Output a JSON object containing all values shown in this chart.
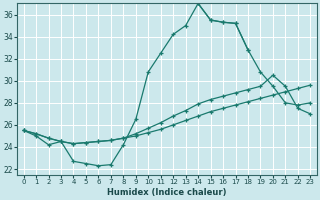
{
  "xlabel": "Humidex (Indice chaleur)",
  "background_color": "#cce8ec",
  "grid_color": "#ffffff",
  "line_color": "#1a7a6e",
  "xlim": [
    -0.5,
    23.5
  ],
  "ylim": [
    21.5,
    37.0
  ],
  "xticks": [
    0,
    1,
    2,
    3,
    4,
    5,
    6,
    7,
    8,
    9,
    10,
    11,
    12,
    13,
    14,
    15,
    16,
    17,
    18,
    19,
    20,
    21,
    22,
    23
  ],
  "yticks": [
    22,
    24,
    26,
    28,
    30,
    32,
    34,
    36
  ],
  "ytick_labels": [
    "22",
    "24",
    "26",
    "28",
    "30",
    "32",
    "34",
    "36"
  ],
  "line1_x": [
    0,
    1,
    2,
    3,
    4,
    5,
    6,
    7,
    8,
    9,
    10,
    11,
    12,
    13,
    14,
    15,
    16,
    17,
    18
  ],
  "line1_y": [
    25.5,
    25.0,
    24.2,
    24.5,
    22.7,
    22.5,
    22.3,
    22.4,
    24.2,
    26.5,
    30.8,
    32.5,
    34.2,
    35.0,
    37.0,
    35.5,
    35.3,
    35.2,
    32.8
  ],
  "line2_x": [
    14,
    15,
    16,
    17,
    18,
    19,
    20,
    21,
    22,
    23
  ],
  "line2_y": [
    37.0,
    35.5,
    35.3,
    35.2,
    32.8,
    30.8,
    29.5,
    28.0,
    27.8,
    28.0
  ],
  "line3_x": [
    0,
    1,
    2,
    3,
    4,
    5,
    6,
    7,
    8,
    9,
    10,
    11,
    12,
    13,
    14,
    15,
    16,
    17,
    18,
    19,
    20,
    21,
    22,
    23
  ],
  "line3_y": [
    25.5,
    25.2,
    24.8,
    24.5,
    24.3,
    24.4,
    24.5,
    24.6,
    24.8,
    25.0,
    25.3,
    25.6,
    26.0,
    26.4,
    26.8,
    27.2,
    27.5,
    27.8,
    28.1,
    28.4,
    28.7,
    29.0,
    29.3,
    29.6
  ],
  "line4_x": [
    0,
    1,
    2,
    3,
    4,
    5,
    6,
    7,
    8,
    9,
    10,
    11,
    12,
    13,
    14,
    15,
    16,
    17,
    18,
    19,
    20,
    21,
    22,
    23
  ],
  "line4_y": [
    25.5,
    25.2,
    24.8,
    24.5,
    24.3,
    24.4,
    24.5,
    24.6,
    24.8,
    25.2,
    25.7,
    26.2,
    26.8,
    27.3,
    27.9,
    28.3,
    28.6,
    28.9,
    29.2,
    29.5,
    30.5,
    29.5,
    27.5,
    27.0
  ]
}
